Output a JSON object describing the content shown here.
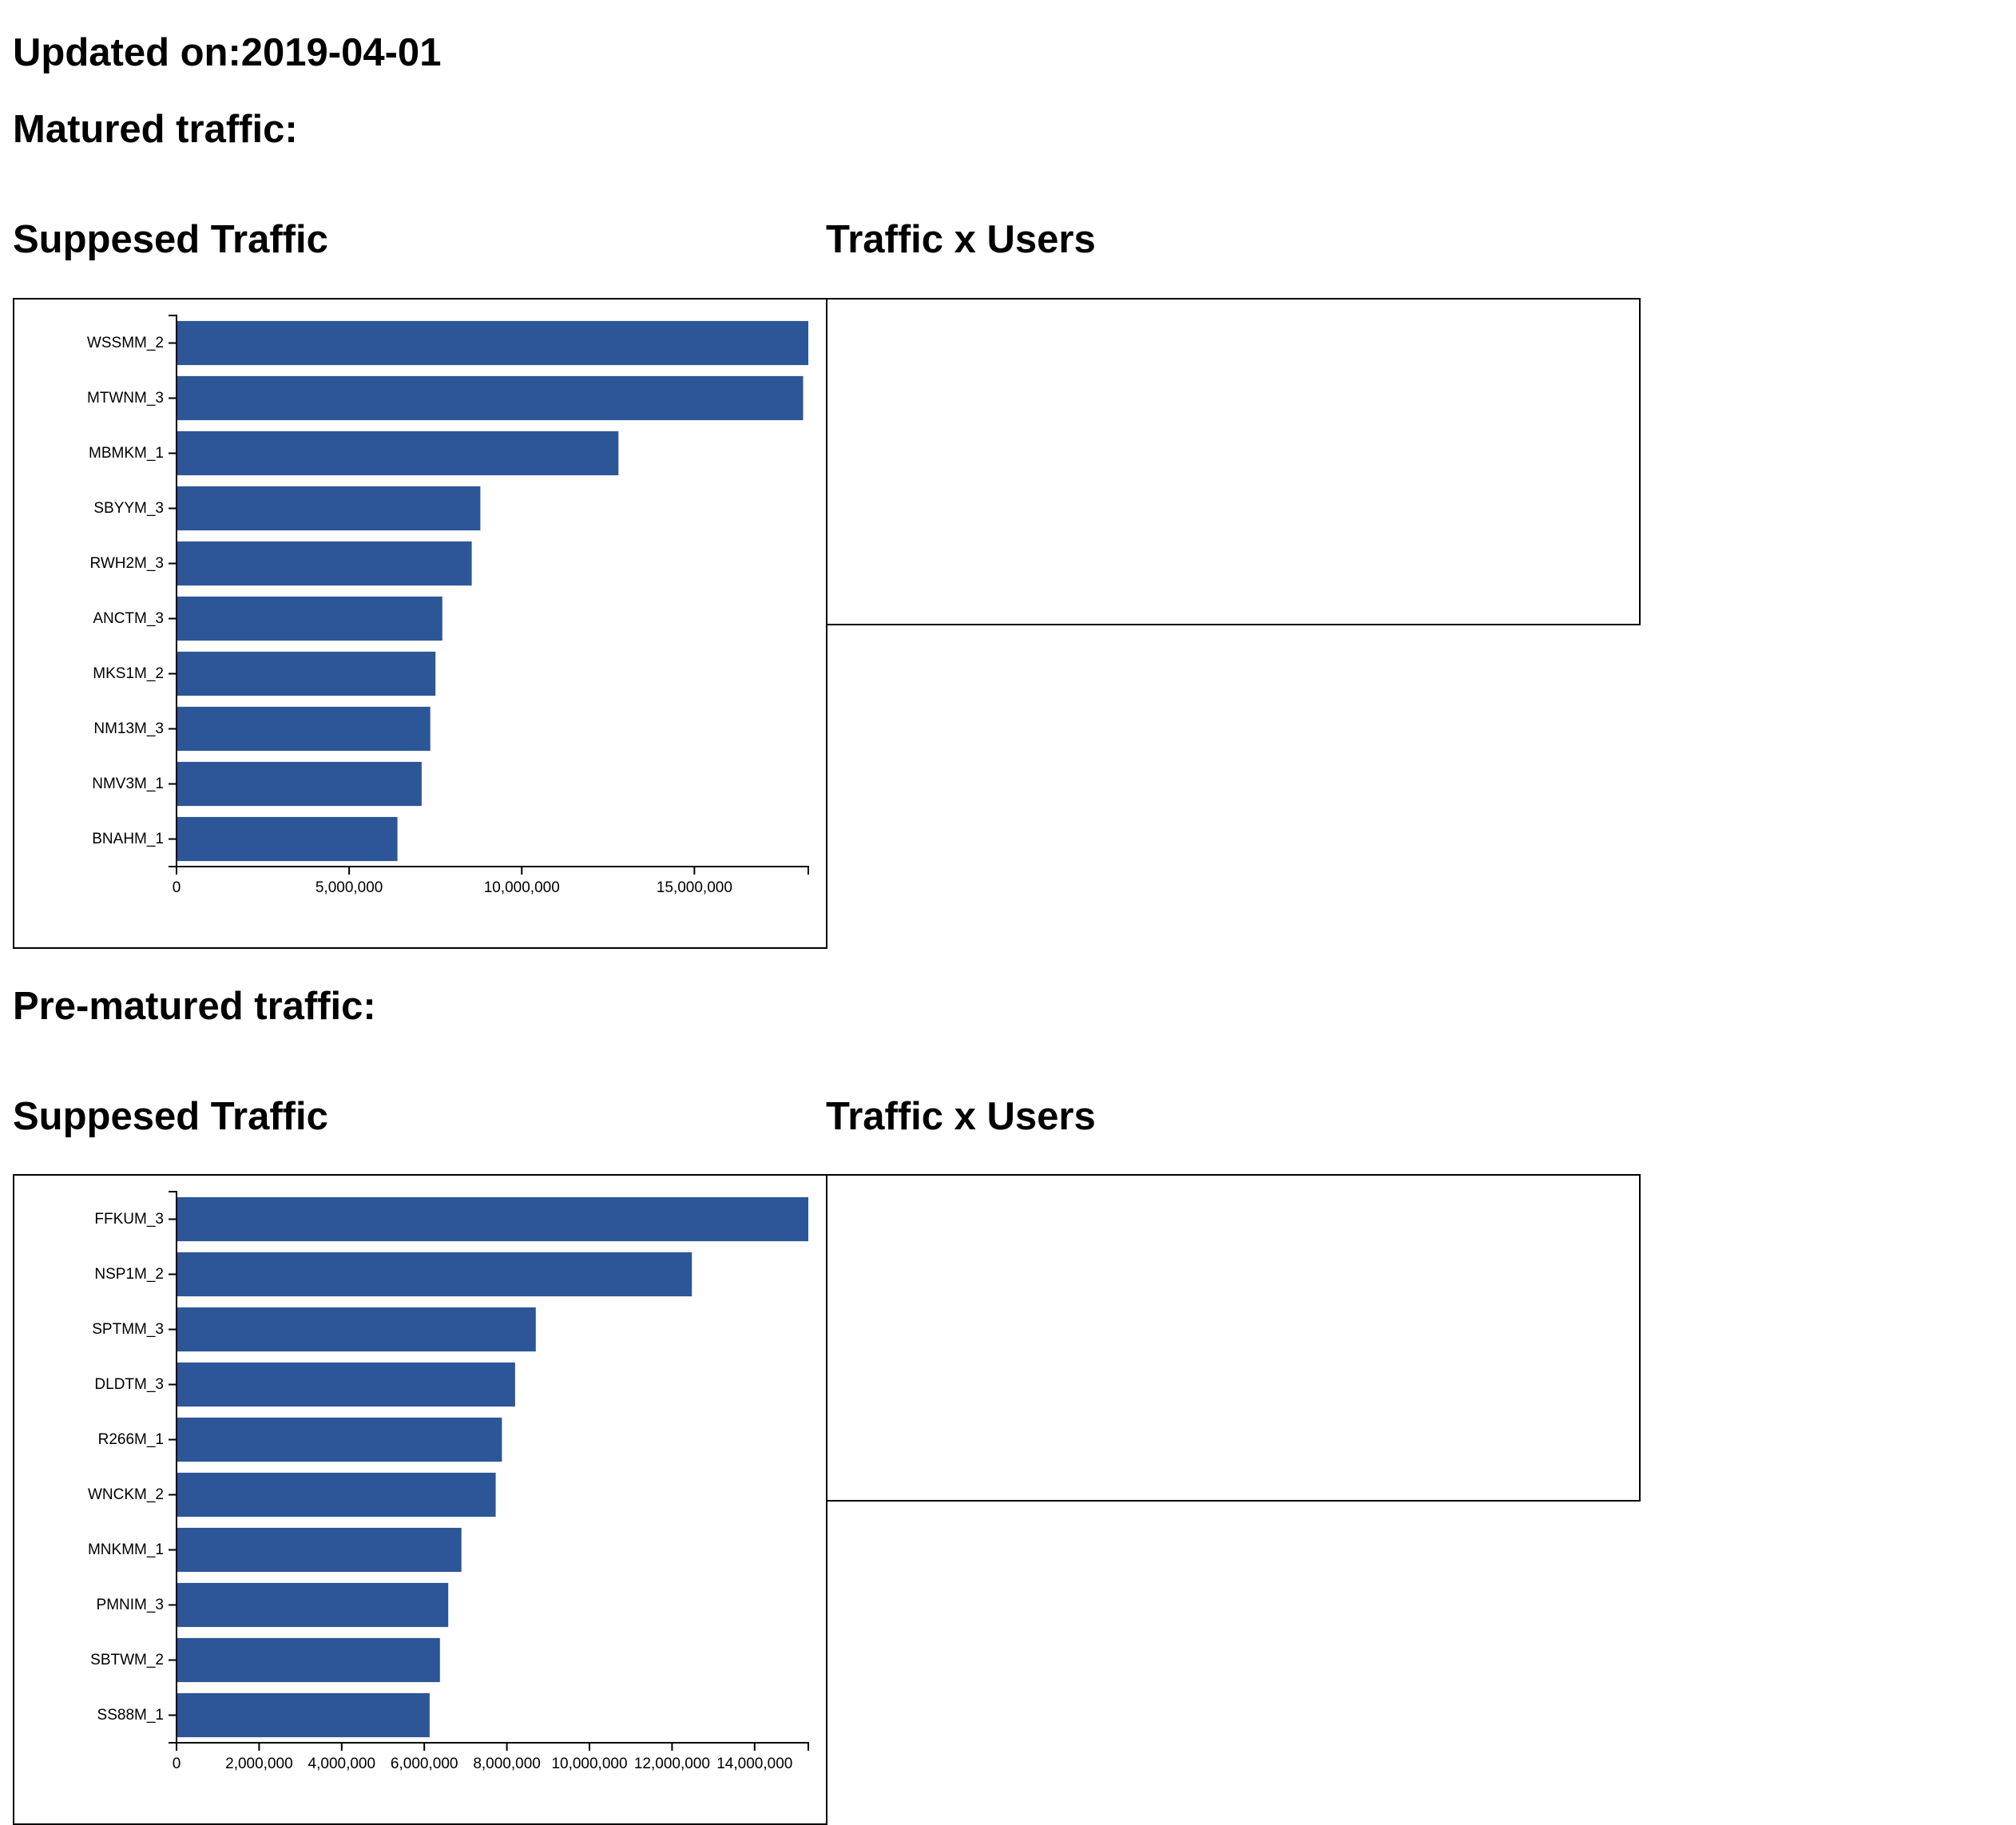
{
  "page": {
    "updated_label": "Updated on:2019-04-01",
    "matured_heading": "Matured traffic:",
    "prematured_heading": "Pre-matured traffic:",
    "bar_color": "#2c5697"
  },
  "matured": {
    "suppressed_title": "Suppesed Traffic",
    "users_title": "Traffic x Users"
  },
  "prematured": {
    "suppressed_title": "Suppesed Traffic",
    "users_title": "Traffic x Users"
  },
  "chart_data": [
    {
      "type": "bar",
      "orientation": "horizontal",
      "title": "Suppesed Traffic",
      "section": "Matured traffic",
      "categories": [
        "WSSMM_2",
        "MTWNM_3",
        "MBMKM_1",
        "SBYYM_3",
        "RWH2M_3",
        "ANCTM_3",
        "MKS1M_2",
        "NM13M_3",
        "NMV3M_1",
        "BNAHM_1"
      ],
      "values": [
        18300000,
        18150000,
        12800000,
        8800000,
        8550000,
        7700000,
        7500000,
        7350000,
        7100000,
        6400000
      ],
      "xlim": [
        0,
        18300000
      ],
      "xticks": [
        0,
        5000000,
        10000000,
        15000000
      ],
      "xtick_labels": [
        "0",
        "5,000,000",
        "10,000,000",
        "15,000,000"
      ],
      "xlabel": "",
      "ylabel": "",
      "grid": false
    },
    {
      "type": "bar",
      "orientation": "horizontal",
      "title": "Suppesed Traffic",
      "section": "Pre-matured traffic",
      "categories": [
        "FFKUM_3",
        "NSP1M_2",
        "SPTMM_3",
        "DLDTM_3",
        "R266M_1",
        "WNCKM_2",
        "MNKMM_1",
        "PMNIM_3",
        "SBTWM_2",
        "SS88M_1"
      ],
      "values": [
        15300000,
        12480000,
        8700000,
        8200000,
        7880000,
        7730000,
        6900000,
        6580000,
        6380000,
        6130000
      ],
      "xlim": [
        0,
        15300000
      ],
      "xticks": [
        0,
        2000000,
        4000000,
        6000000,
        8000000,
        10000000,
        12000000,
        14000000
      ],
      "xtick_labels": [
        "0",
        "2,000,000",
        "4,000,000",
        "6,000,000",
        "8,000,000",
        "10,000,000",
        "12,000,000",
        "14,000,000"
      ],
      "xlabel": "",
      "ylabel": "",
      "grid": false
    }
  ]
}
